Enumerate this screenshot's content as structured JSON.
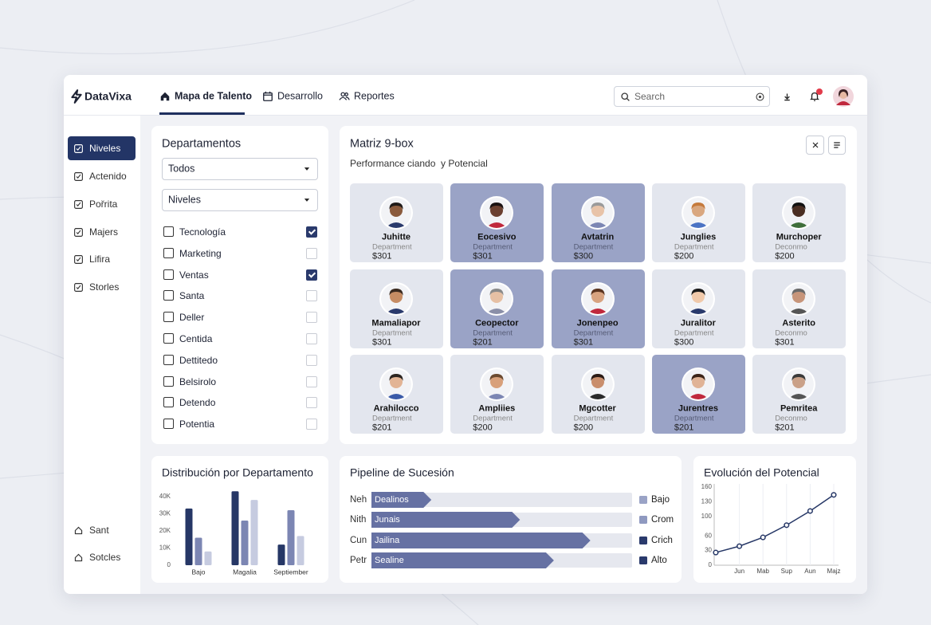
{
  "header": {
    "brand": "DataVixa",
    "nav": [
      "Mapa de Talento",
      "Desarrollo",
      "Reportes"
    ],
    "search": "Search"
  },
  "sidebar": {
    "items": [
      "Niveles",
      "Actenido",
      "Pořrita",
      "Majers",
      "Lifira",
      "Storles"
    ],
    "footer": [
      "Sant",
      "Sotcles"
    ]
  },
  "filters": {
    "title": "Departamentos",
    "selects": [
      "Todos",
      "Niveles"
    ],
    "items": [
      {
        "label": "Tecnología",
        "checked": true
      },
      {
        "label": "Marketing",
        "checked": false
      },
      {
        "label": "Ventas",
        "checked": true
      },
      {
        "label": "Santa",
        "checked": false
      },
      {
        "label": "Deller",
        "checked": false
      },
      {
        "label": "Centida",
        "checked": false
      },
      {
        "label": "Dettitedo",
        "checked": false
      },
      {
        "label": "Belsirolo",
        "checked": false
      },
      {
        "label": "Detendo",
        "checked": false
      },
      {
        "label": "Potentia",
        "checked": false
      }
    ]
  },
  "matrix": {
    "title": "Matriz 9-box",
    "subtitle": "Performance ciando  y Potencial",
    "cells": [
      {
        "name": "Juhitte",
        "department": "Department",
        "salary": "$301",
        "highlight": false
      },
      {
        "name": "Eocesivo",
        "department": "Department",
        "salary": "$301",
        "highlight": true
      },
      {
        "name": "Avtatrin",
        "department": "Department",
        "salary": "$300",
        "highlight": true
      },
      {
        "name": "Junglies",
        "department": "Department",
        "salary": "$200",
        "highlight": false
      },
      {
        "name": "Murchoper",
        "department": "Deconmo",
        "salary": "$200",
        "highlight": false
      },
      {
        "name": "Mamaliapor",
        "department": "Department",
        "salary": "$301",
        "highlight": false
      },
      {
        "name": "Ceopector",
        "department": "Department",
        "salary": "$201",
        "highlight": true
      },
      {
        "name": "Jonenpeo",
        "department": "Department",
        "salary": "$301",
        "highlight": true
      },
      {
        "name": "Juralitor",
        "department": "Department",
        "salary": "$300",
        "highlight": false
      },
      {
        "name": "Asterito",
        "department": "Deconmo",
        "salary": "$301",
        "highlight": false
      },
      {
        "name": "Arahilocco",
        "department": "Department",
        "salary": "$201",
        "highlight": false
      },
      {
        "name": "Ampliies",
        "department": "Department",
        "salary": "$200",
        "highlight": false
      },
      {
        "name": "Mgcotter",
        "department": "Department",
        "salary": "$200",
        "highlight": false
      },
      {
        "name": "Jurentres",
        "department": "Department",
        "salary": "$201",
        "highlight": true
      },
      {
        "name": "Pemritea",
        "department": "Deconmo",
        "salary": "$201",
        "highlight": false
      }
    ]
  },
  "chart_data": [
    {
      "type": "bar",
      "title": "Distribución por Departamento",
      "categories": [
        "Bajo",
        "Magalia",
        "Septiember"
      ],
      "series": [
        {
          "color": "#263766",
          "values": [
            33000,
            43000,
            12000
          ]
        },
        {
          "color": "#7c86b3",
          "values": [
            16000,
            26000,
            32000
          ]
        },
        {
          "color": "#c6cbe0",
          "values": [
            8000,
            38000,
            17000
          ]
        }
      ],
      "ylim": [
        0,
        45000
      ],
      "yticks": [
        {
          "value": 0,
          "label": "0"
        },
        {
          "value": 10000,
          "label": "10K"
        },
        {
          "value": 20000,
          "label": "20K"
        },
        {
          "value": 30000,
          "label": "30K"
        },
        {
          "value": 40000,
          "label": "40K"
        }
      ],
      "grid": false
    },
    {
      "type": "hbar",
      "title": "Pipeline de Sucesión",
      "categories": [
        "Neh",
        "Nith",
        "Cun",
        "Petr"
      ],
      "bar_labels": [
        "Dealinos",
        "Junais",
        "Jailina",
        "Sealine"
      ],
      "values": [
        23,
        57,
        84,
        70
      ],
      "xlim": [
        0,
        100
      ],
      "color": "#6671a3",
      "legend_items": [
        {
          "name": "Bajo",
          "color": "#9aa3c6"
        },
        {
          "name": "Crom",
          "color": "#8f99c0"
        },
        {
          "name": "Crich",
          "color": "#2a3a6c"
        },
        {
          "name": "Alto",
          "color": "#2a3a6c"
        }
      ]
    },
    {
      "type": "line",
      "title": "Evolución del Potencial",
      "categories": [
        null,
        "Jun",
        "Mab",
        "Sup",
        "Aun",
        "Majz"
      ],
      "values": [
        26,
        39,
        57,
        82,
        111,
        144
      ],
      "color": "#263766",
      "ylim": [
        0,
        160
      ],
      "yticks": [
        0,
        30,
        60,
        100,
        130,
        160
      ],
      "grid": false
    }
  ]
}
